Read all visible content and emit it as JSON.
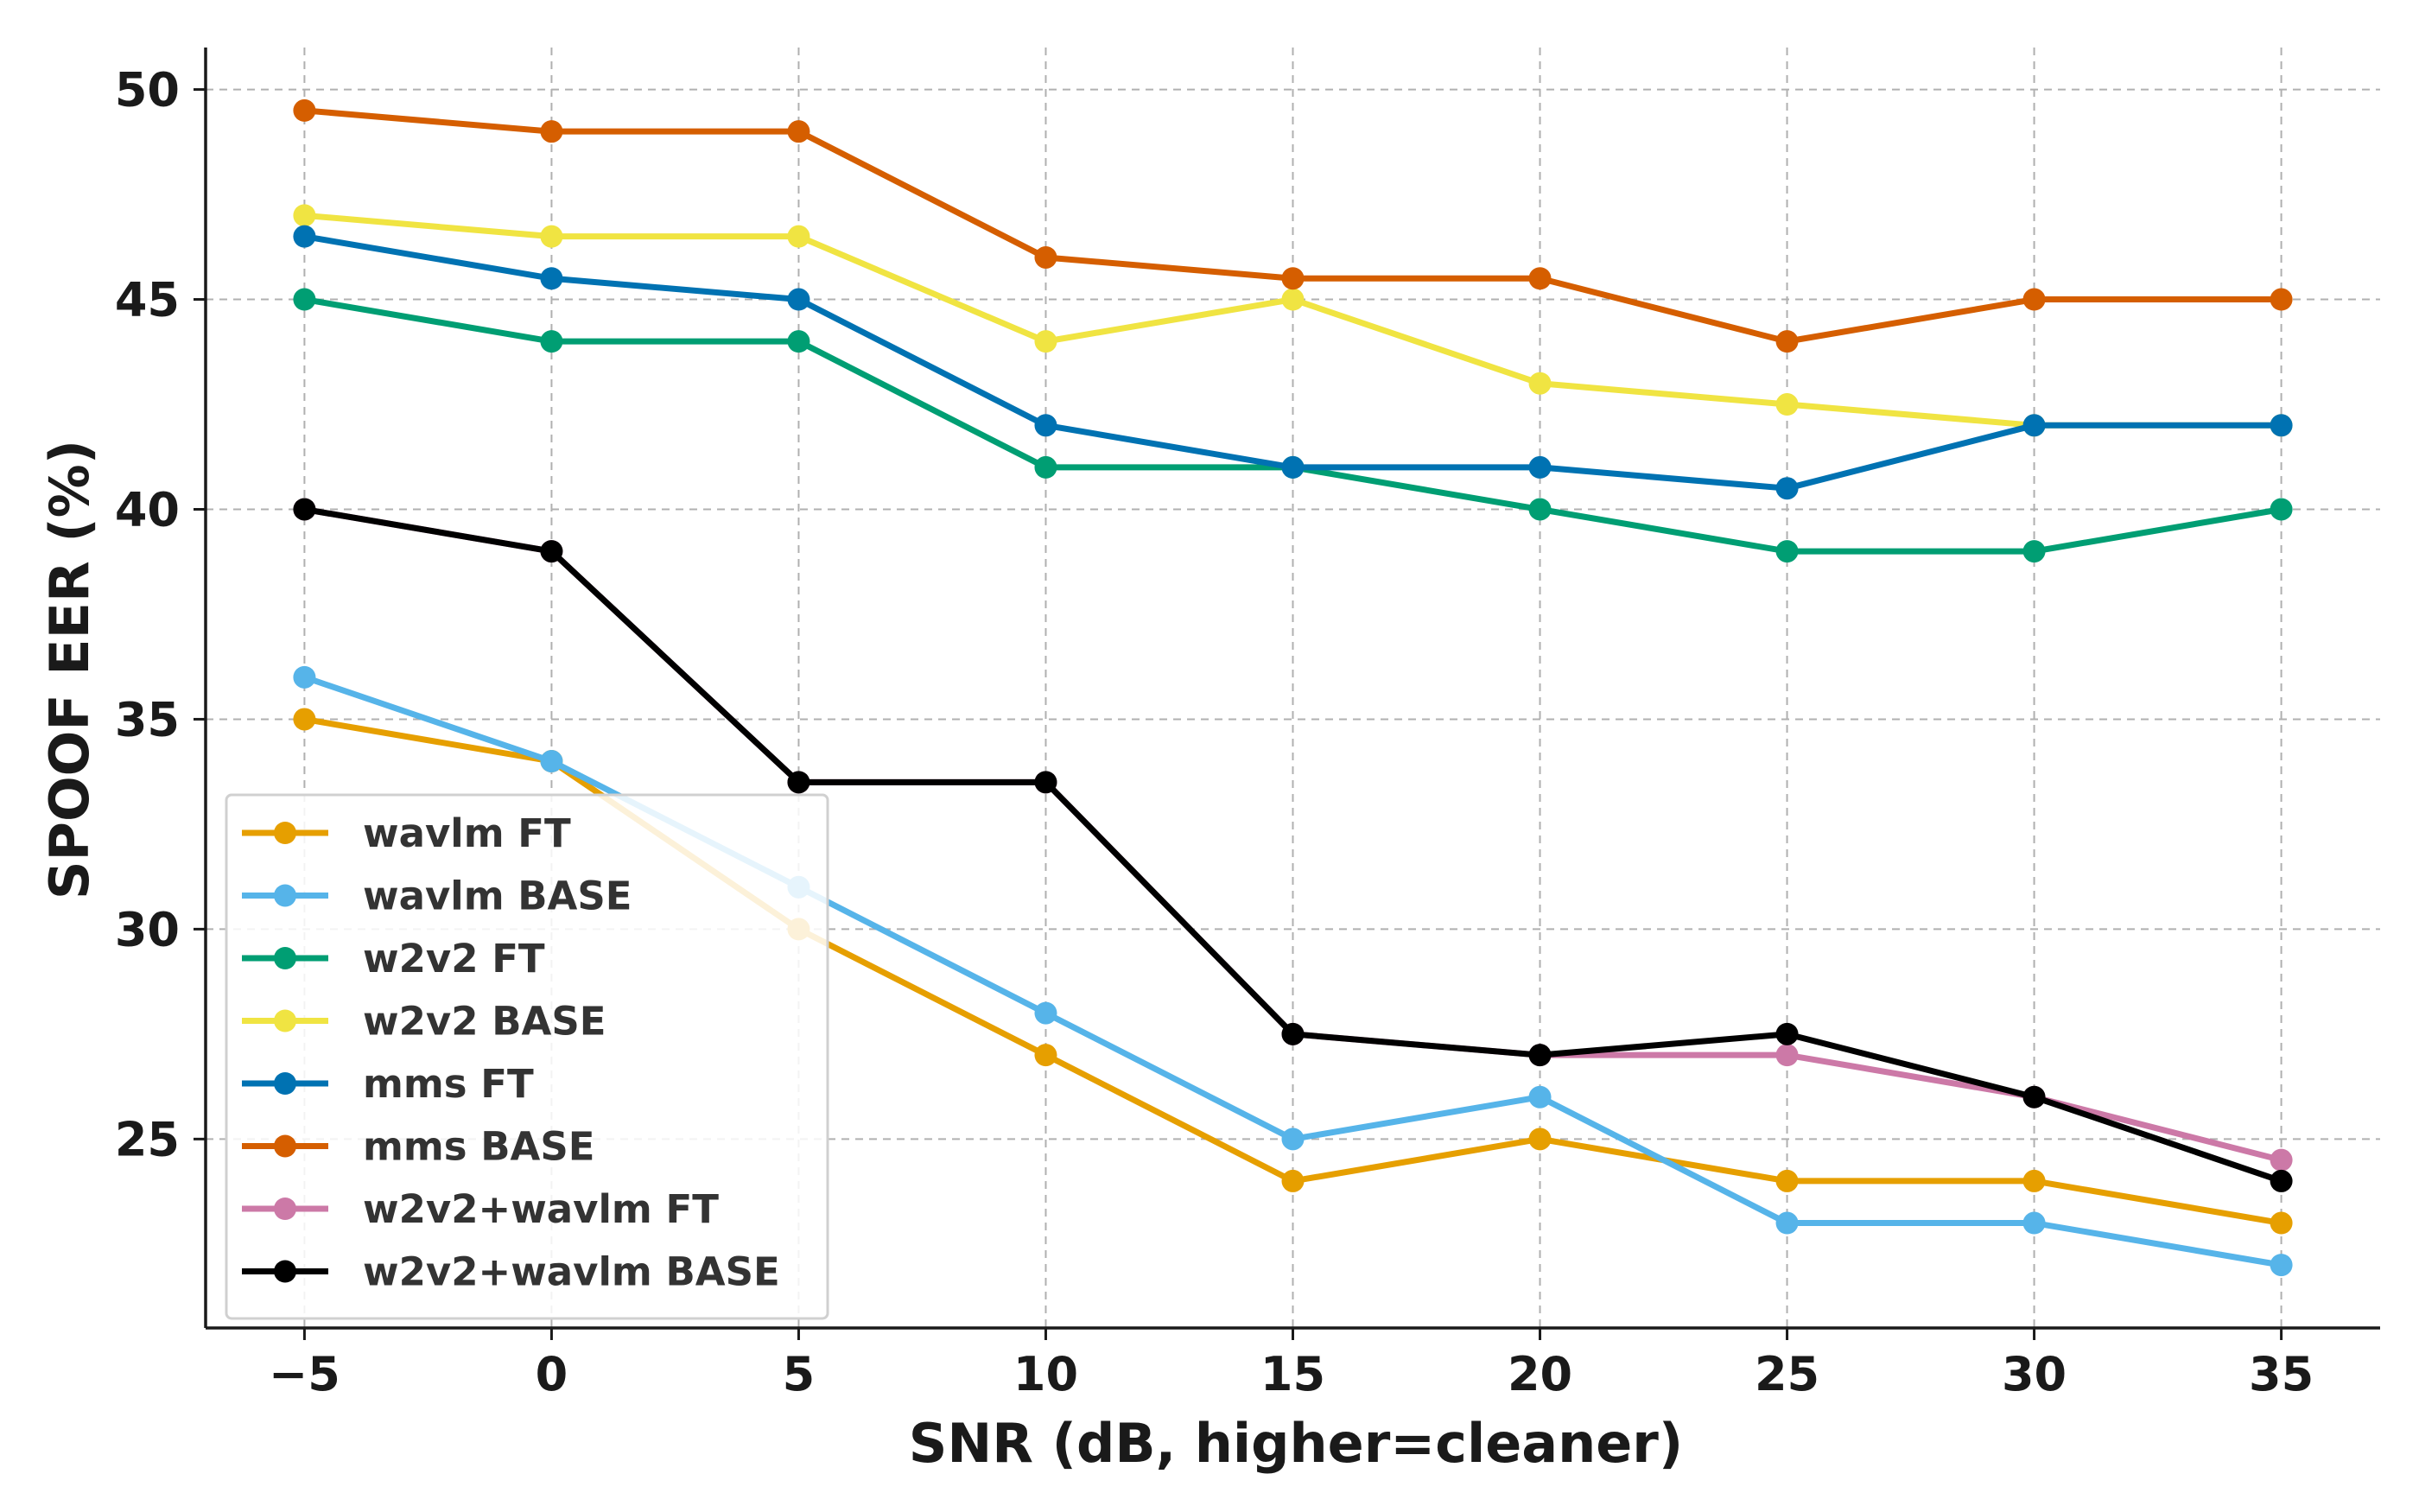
{
  "chart_data": {
    "type": "line",
    "xlabel": "SNR (dB, higher=cleaner)",
    "ylabel": "SPOOF EER (%)",
    "xlim": [
      -7,
      37
    ],
    "ylim": [
      20.5,
      51
    ],
    "x_ticks": [
      -5,
      0,
      5,
      10,
      15,
      20,
      25,
      30,
      35
    ],
    "x_tick_labels": [
      "−5",
      "0",
      "5",
      "10",
      "15",
      "20",
      "25",
      "30",
      "35"
    ],
    "y_ticks": [
      25,
      30,
      35,
      40,
      45,
      50
    ],
    "y_tick_labels": [
      "25",
      "30",
      "35",
      "40",
      "45",
      "50"
    ],
    "grid": true,
    "legend_position": "bottom-left",
    "x": [
      -5,
      0,
      5,
      10,
      15,
      20,
      25,
      30,
      35
    ],
    "series": [
      {
        "name": "wavlm FT",
        "color": "#E69F00",
        "values": [
          35,
          34,
          30,
          27,
          24,
          25,
          24,
          24,
          23
        ]
      },
      {
        "name": "wavlm BASE",
        "color": "#56B4E9",
        "values": [
          36,
          34,
          31,
          28,
          25,
          26,
          23,
          23,
          22
        ]
      },
      {
        "name": "w2v2 FT",
        "color": "#009E73",
        "values": [
          45,
          44,
          44,
          41,
          41,
          40,
          39,
          39,
          40
        ]
      },
      {
        "name": "w2v2 BASE",
        "color": "#F0E442",
        "values": [
          47,
          46.5,
          46.5,
          44,
          45,
          43,
          42.5,
          42,
          42
        ]
      },
      {
        "name": "mms FT",
        "color": "#0072B2",
        "values": [
          46.5,
          45.5,
          45,
          42,
          41,
          41,
          40.5,
          42,
          42
        ]
      },
      {
        "name": "mms BASE",
        "color": "#D55E00",
        "values": [
          49.5,
          49,
          49,
          46,
          45.5,
          45.5,
          44,
          45,
          45
        ]
      },
      {
        "name": "w2v2+wavlm FT",
        "color": "#CC79A7",
        "values": [
          40,
          39,
          33.5,
          33.5,
          27.5,
          27,
          27,
          26,
          24.5
        ]
      },
      {
        "name": "w2v2+wavlm BASE",
        "color": "#000000",
        "values": [
          40,
          39,
          33.5,
          33.5,
          27.5,
          27,
          27.5,
          26,
          24
        ]
      }
    ]
  }
}
